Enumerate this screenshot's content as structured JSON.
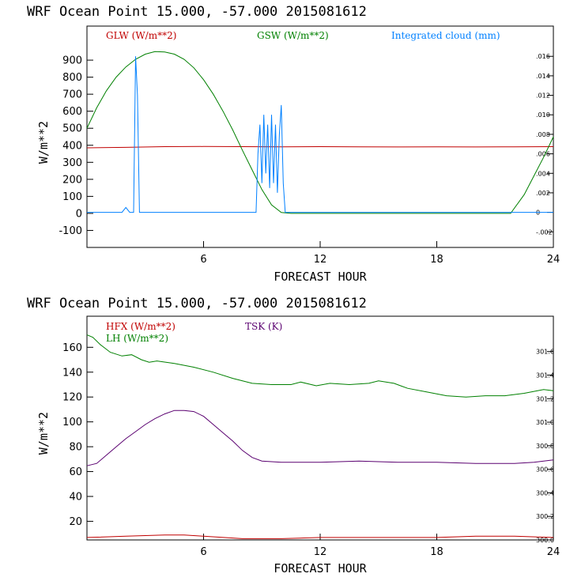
{
  "chart_data": [
    {
      "type": "line",
      "title": "WRF   Ocean Point   15.000, -57.000  2015081612",
      "xlabel": "FORECAST HOUR",
      "ylabel": "W/m**2",
      "xlim": [
        0,
        24
      ],
      "ylim": [
        -200,
        1100
      ],
      "xticks": [
        6,
        12,
        18,
        24
      ],
      "yticks": [
        -100,
        0,
        100,
        200,
        300,
        400,
        500,
        600,
        700,
        800,
        900
      ],
      "ytick_labels": [
        "-100",
        "0",
        "100",
        "200",
        "300",
        "400",
        "500",
        "600",
        "700",
        "800",
        "900"
      ],
      "y2lim": [
        -0.0036,
        0.0191
      ],
      "y2ticks": [
        -0.002,
        0,
        0.002,
        0.004,
        0.006,
        0.008,
        0.01,
        0.012,
        0.014,
        0.016
      ],
      "y2tick_labels": [
        "-.002",
        "0",
        ".002",
        ".004",
        ".006",
        ".008",
        ".010",
        ".012",
        ".014",
        ".016"
      ],
      "series": [
        {
          "name": "GLW (W/m**2)",
          "color": "#c00000",
          "axis": "left",
          "x": [
            0,
            2,
            4,
            6,
            8,
            10,
            12,
            14,
            16,
            18,
            20,
            22,
            24
          ],
          "values": [
            385,
            388,
            392,
            393,
            392,
            391,
            392,
            391,
            390,
            391,
            390,
            391,
            392
          ]
        },
        {
          "name": "GSW (W/m**2)",
          "color": "#008000",
          "axis": "left",
          "x": [
            0,
            0.5,
            1,
            1.5,
            2,
            2.5,
            3,
            3.5,
            4,
            4.5,
            5,
            5.5,
            6,
            6.5,
            7,
            7.5,
            8,
            8.5,
            9,
            9.5,
            10,
            10.5,
            11,
            12,
            14,
            16,
            18,
            20,
            21,
            21.8,
            22.5,
            23,
            23.5,
            24
          ],
          "values": [
            500,
            620,
            720,
            800,
            860,
            905,
            935,
            950,
            948,
            935,
            905,
            855,
            785,
            700,
            600,
            490,
            370,
            255,
            140,
            50,
            5,
            0,
            0,
            0,
            0,
            0,
            0,
            0,
            0,
            0,
            110,
            220,
            330,
            450
          ]
        },
        {
          "name": "Integrated cloud (mm)",
          "color": "#0080ff",
          "axis": "right",
          "x": [
            0,
            1.8,
            2.0,
            2.2,
            2.4,
            2.5,
            2.6,
            2.7,
            2.8,
            3.0,
            8.7,
            8.8,
            8.9,
            9.0,
            9.1,
            9.2,
            9.3,
            9.4,
            9.5,
            9.6,
            9.7,
            9.8,
            9.9,
            10.0,
            10.1,
            10.2,
            10.4,
            24
          ],
          "values": [
            0,
            0,
            0.0005,
            0,
            0,
            0.016,
            0.012,
            0,
            0,
            0,
            0,
            0.006,
            0.009,
            0.003,
            0.01,
            0.004,
            0.009,
            0.0025,
            0.01,
            0.003,
            0.009,
            0.002,
            0.008,
            0.011,
            0.003,
            0,
            0,
            0
          ]
        }
      ]
    },
    {
      "type": "line",
      "title": "WRF   Ocean Point   15.000, -57.000  2015081612",
      "xlabel": "FORECAST HOUR",
      "ylabel": "W/m**2",
      "xlim": [
        0,
        24
      ],
      "ylim": [
        5,
        185
      ],
      "xticks": [
        6,
        12,
        18,
        24
      ],
      "yticks": [
        20,
        40,
        60,
        80,
        100,
        120,
        140,
        160
      ],
      "ytick_labels": [
        "20",
        "40",
        "60",
        "80",
        "100",
        "120",
        "140",
        "160"
      ],
      "y2lim": [
        300.0,
        301.9
      ],
      "y2ticks": [
        300.0,
        300.2,
        300.4,
        300.6,
        300.8,
        301.0,
        301.2,
        301.4,
        301.6
      ],
      "y2tick_labels": [
        "300.0",
        "300.2",
        "300.4",
        "300.6",
        "300.8",
        "301.0",
        "301.2",
        "301.4",
        "301.6"
      ],
      "series": [
        {
          "name": "HFX (W/m**2)",
          "color": "#c00000",
          "axis": "left",
          "x": [
            0,
            2,
            4,
            5,
            6,
            8,
            10,
            12,
            14,
            16,
            18,
            20,
            22,
            24
          ],
          "values": [
            7,
            8,
            9,
            9,
            8,
            6,
            6,
            7,
            7,
            7,
            7,
            8,
            8,
            7
          ]
        },
        {
          "name": "LH  (W/m**2)",
          "color": "#008000",
          "axis": "left",
          "x": [
            0,
            0.3,
            0.7,
            1.2,
            1.8,
            2.3,
            2.8,
            3.2,
            3.6,
            4.5,
            5.5,
            6.5,
            7.5,
            8.5,
            9.5,
            10.5,
            11.0,
            11.8,
            12.5,
            13.5,
            14.5,
            15.0,
            15.8,
            16.5,
            17.5,
            18.5,
            19.5,
            20.5,
            21.5,
            22.5,
            23.5,
            24
          ],
          "values": [
            170,
            168,
            162,
            156,
            153,
            154,
            150,
            148,
            149,
            147,
            144,
            140,
            135,
            131,
            130,
            130,
            132,
            129,
            131,
            130,
            131,
            133,
            131,
            127,
            124,
            121,
            120,
            121,
            121,
            123,
            126,
            125
          ]
        },
        {
          "name": "TSK (K)",
          "color": "#5a0070",
          "axis": "right",
          "x": [
            0,
            0.5,
            1,
            1.5,
            2,
            2.5,
            3,
            3.5,
            4,
            4.5,
            5,
            5.5,
            6,
            6.5,
            7,
            7.5,
            8,
            8.5,
            9,
            10,
            12,
            14,
            16,
            18,
            20,
            22,
            23,
            24
          ],
          "values": [
            300.63,
            300.65,
            300.72,
            300.79,
            300.86,
            300.92,
            300.98,
            301.03,
            301.07,
            301.1,
            301.1,
            301.09,
            301.05,
            300.98,
            300.91,
            300.84,
            300.76,
            300.7,
            300.67,
            300.66,
            300.66,
            300.67,
            300.66,
            300.66,
            300.65,
            300.65,
            300.66,
            300.68
          ]
        }
      ]
    }
  ]
}
